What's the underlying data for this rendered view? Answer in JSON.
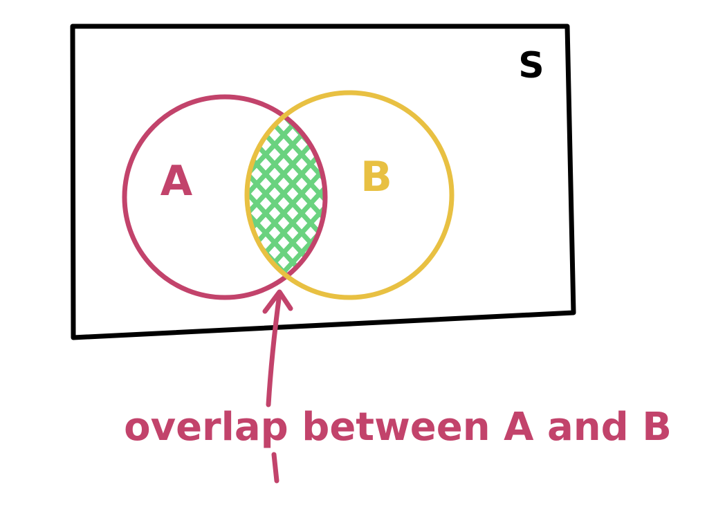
{
  "diagram": {
    "universe_label": "S",
    "set_a": {
      "label": "A"
    },
    "set_b": {
      "label": "B"
    },
    "annotation": {
      "text": "overlap between A and B"
    },
    "colors": {
      "frame": "#000000",
      "set_a": "#c2436b",
      "set_b": "#e8c042",
      "overlap_hatch": "#6ad27f",
      "annotation": "#c2436b"
    }
  }
}
